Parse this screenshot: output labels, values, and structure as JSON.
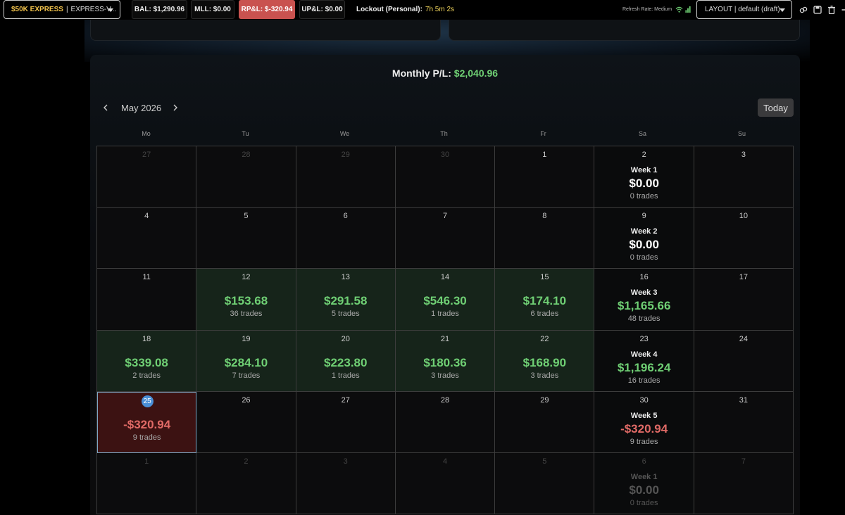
{
  "topbar": {
    "account_brand": "$50K EXPRESS",
    "account_separator": "|",
    "account_name": "EXPRESS-V...",
    "balance": "BAL: $1,290.96",
    "mll": "MLL: $0.00",
    "rpl": "RP&L: $-320.94",
    "upl": "UP&L: $0.00",
    "lockout_label": "Lockout (Personal):",
    "lockout_value": "7h 5m 2s",
    "refresh_label": "Refresh Rate: Medium",
    "layout_label": "LAYOUT | default (draft)",
    "icons": [
      "link-icon",
      "save-icon",
      "trash-icon",
      "plus-icon"
    ]
  },
  "calendar": {
    "monthly_label": "Monthly P/L:",
    "monthly_value": "$2,040.96",
    "month": "May 2026",
    "today_button": "Today",
    "weekdays": [
      "Mo",
      "Tu",
      "We",
      "Th",
      "Fr",
      "Sa",
      "Su"
    ],
    "rows": [
      [
        {
          "day": "27",
          "out": true
        },
        {
          "day": "28",
          "out": true
        },
        {
          "day": "29",
          "out": true
        },
        {
          "day": "30",
          "out": true
        },
        {
          "day": "1"
        },
        {
          "day": "2",
          "week": "Week 1",
          "week_pnl": "$0.00",
          "week_trades": "0 trades"
        },
        {
          "day": "3"
        }
      ],
      [
        {
          "day": "4"
        },
        {
          "day": "5"
        },
        {
          "day": "6"
        },
        {
          "day": "7"
        },
        {
          "day": "8"
        },
        {
          "day": "9",
          "week": "Week 2",
          "week_pnl": "$0.00",
          "week_trades": "0 trades"
        },
        {
          "day": "10"
        }
      ],
      [
        {
          "day": "11"
        },
        {
          "day": "12",
          "pnl": "$153.68",
          "trades": "36 trades",
          "state": "win"
        },
        {
          "day": "13",
          "pnl": "$291.58",
          "trades": "5 trades",
          "state": "win"
        },
        {
          "day": "14",
          "pnl": "$546.30",
          "trades": "1 trades",
          "state": "win"
        },
        {
          "day": "15",
          "pnl": "$174.10",
          "trades": "6 trades",
          "state": "win"
        },
        {
          "day": "16",
          "week": "Week 3",
          "week_pnl": "$1,165.66",
          "week_trades": "48 trades",
          "week_state": "pos"
        },
        {
          "day": "17"
        }
      ],
      [
        {
          "day": "18",
          "pnl": "$339.08",
          "trades": "2 trades",
          "state": "win"
        },
        {
          "day": "19",
          "pnl": "$284.10",
          "trades": "7 trades",
          "state": "win"
        },
        {
          "day": "20",
          "pnl": "$223.80",
          "trades": "1 trades",
          "state": "win"
        },
        {
          "day": "21",
          "pnl": "$180.36",
          "trades": "3 trades",
          "state": "win"
        },
        {
          "day": "22",
          "pnl": "$168.90",
          "trades": "3 trades",
          "state": "win"
        },
        {
          "day": "23",
          "week": "Week 4",
          "week_pnl": "$1,196.24",
          "week_trades": "16 trades",
          "week_state": "pos"
        },
        {
          "day": "24"
        }
      ],
      [
        {
          "day": "25",
          "pnl": "-$320.94",
          "trades": "9 trades",
          "state": "loss",
          "today": true
        },
        {
          "day": "26"
        },
        {
          "day": "27"
        },
        {
          "day": "28"
        },
        {
          "day": "29"
        },
        {
          "day": "30",
          "week": "Week 5",
          "week_pnl": "-$320.94",
          "week_trades": "9 trades",
          "week_state": "neg"
        },
        {
          "day": "31"
        }
      ],
      [
        {
          "day": "1",
          "out": true
        },
        {
          "day": "2",
          "out": true
        },
        {
          "day": "3",
          "out": true
        },
        {
          "day": "4",
          "out": true
        },
        {
          "day": "5",
          "out": true
        },
        {
          "day": "6",
          "out": true,
          "week": "Week 1",
          "week_pnl": "$0.00",
          "week_trades": "0 trades"
        },
        {
          "day": "7",
          "out": true
        }
      ]
    ]
  },
  "colors": {
    "accent_gold": "#f0c14b",
    "profit_green": "#6fcf74",
    "loss_red": "#e06a66",
    "rpl_badge": "#c9524f",
    "today_badge": "#4a8fd6"
  }
}
